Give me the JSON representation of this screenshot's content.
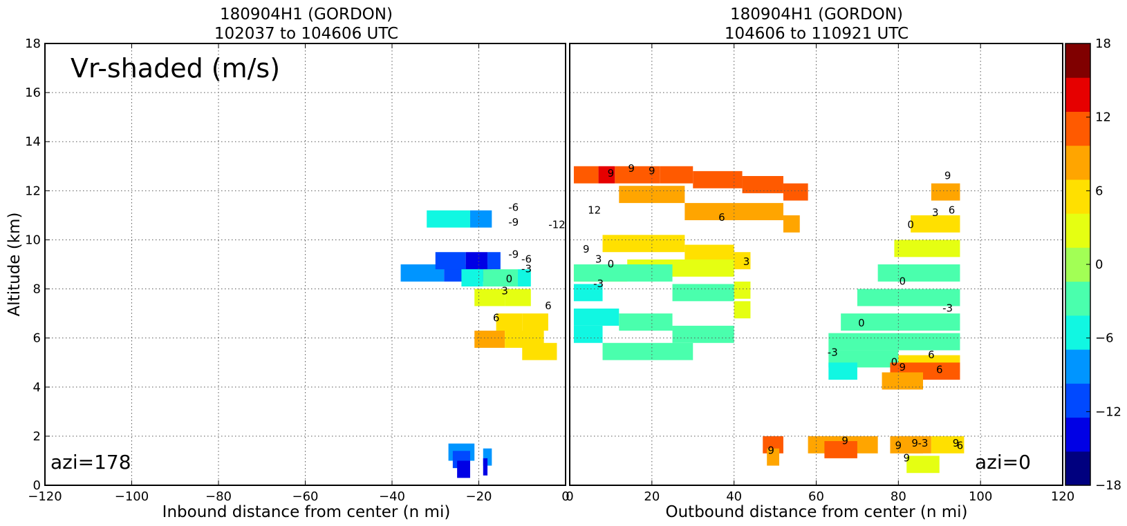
{
  "figure": {
    "shading_label": "Vr-shaded (m/s)"
  },
  "chart_data": [
    {
      "type": "heatmap",
      "title": "180904H1 (GORDON)",
      "subtitle": "102037 to 104606 UTC",
      "xlabel": "Inbound distance from center (n mi)",
      "ylabel": "Altitude (km)",
      "xlim": [
        -120,
        0
      ],
      "ylim": [
        0,
        18
      ],
      "xticks": [
        -120,
        -100,
        -80,
        -60,
        -40,
        -20,
        0
      ],
      "yticks": [
        0,
        2,
        4,
        6,
        8,
        10,
        12,
        14,
        16,
        18
      ],
      "grid": true,
      "annotation": "azi=178",
      "cells": [
        [
          -24,
          9,
          -14,
          -4,
          -7.5
        ],
        [
          -24,
          9,
          -4,
          1,
          -10.5
        ],
        [
          -24,
          9,
          1,
          4,
          -4.5
        ],
        [
          -24,
          9,
          4,
          7,
          -7.5
        ],
        [
          -20,
          11.2,
          -12,
          -2,
          -4.5
        ],
        [
          -20,
          11.2,
          -2,
          3,
          -7.5
        ],
        [
          -20,
          9.5,
          -10,
          -3,
          -10.5
        ],
        [
          -20,
          9.5,
          -3,
          2,
          -13.5
        ],
        [
          -20,
          9.5,
          2,
          5,
          -10.5
        ],
        [
          -15,
          8.8,
          -9,
          -4,
          -4.5
        ],
        [
          -15,
          8.8,
          -4,
          4,
          -1.5
        ],
        [
          -15,
          8.8,
          4,
          7,
          -4.5
        ],
        [
          -12,
          8.0,
          -9,
          -2,
          1.5
        ],
        [
          -12,
          8.0,
          -2,
          4,
          1.5
        ],
        [
          -9,
          7.0,
          -7,
          -1,
          4.5
        ],
        [
          -9,
          7.0,
          -1,
          5,
          4.5
        ],
        [
          -10,
          6.3,
          -11,
          -4,
          7.5
        ],
        [
          -10,
          6.3,
          -4,
          5,
          4.5
        ],
        [
          -6,
          5.8,
          -4,
          4,
          4.5
        ],
        [
          -25,
          1.7,
          -2,
          4,
          -7.5
        ],
        [
          -25,
          1.4,
          -1,
          3,
          -10.5
        ],
        [
          -24,
          1.0,
          -1,
          2,
          -13.5
        ],
        [
          -19,
          1.5,
          0,
          2,
          -7.5
        ],
        [
          -19,
          1.1,
          0,
          1,
          -13.5
        ]
      ],
      "contours": [
        {
          "label": "-6",
          "x": -12,
          "y": 11.3
        },
        {
          "label": "-9",
          "x": -12,
          "y": 10.7
        },
        {
          "label": "-12",
          "x": -2,
          "y": 10.6
        },
        {
          "label": "-9",
          "x": -12,
          "y": 9.4
        },
        {
          "label": "-6",
          "x": -9,
          "y": 9.2
        },
        {
          "label": "-3",
          "x": -9,
          "y": 8.8
        },
        {
          "label": "0",
          "x": -13,
          "y": 8.4
        },
        {
          "label": "3",
          "x": -14,
          "y": 7.9
        },
        {
          "label": "6",
          "x": -16,
          "y": 6.8
        },
        {
          "label": "6",
          "x": -4,
          "y": 7.3
        }
      ]
    },
    {
      "type": "heatmap",
      "title": "180904H1 (GORDON)",
      "subtitle": "104606 to 110921 UTC",
      "xlabel": "Outbound distance from center (n mi)",
      "ylabel": "",
      "xlim": [
        0,
        120
      ],
      "ylim": [
        0,
        18
      ],
      "xticks": [
        0,
        20,
        40,
        60,
        80,
        100,
        120
      ],
      "yticks": [
        0,
        2,
        4,
        6,
        8,
        10,
        12,
        14,
        16,
        18
      ],
      "grid": true,
      "annotation": "azi=0",
      "cells": [
        [
          0,
          13.0,
          1,
          7,
          10.5
        ],
        [
          0,
          13.0,
          7,
          11,
          13.5
        ],
        [
          0,
          13.0,
          11,
          22,
          10.5
        ],
        [
          0,
          13.0,
          22,
          30,
          10.5
        ],
        [
          0,
          12.8,
          30,
          42,
          10.5
        ],
        [
          0,
          12.6,
          42,
          52,
          10.5
        ],
        [
          0,
          12.3,
          52,
          58,
          10.5
        ],
        [
          0,
          12.2,
          12,
          28,
          7.5
        ],
        [
          0,
          11.5,
          28,
          52,
          7.5
        ],
        [
          0,
          11.0,
          52,
          56,
          7.5
        ],
        [
          0,
          10.2,
          8,
          28,
          4.5
        ],
        [
          0,
          9.8,
          28,
          40,
          4.5
        ],
        [
          0,
          9.5,
          40,
          44,
          4.5
        ],
        [
          0,
          9.0,
          1,
          14,
          4.5
        ],
        [
          0,
          9.2,
          14,
          40,
          1.5
        ],
        [
          0,
          8.3,
          40,
          44,
          1.5
        ],
        [
          0,
          9.0,
          1,
          25,
          -1.5
        ],
        [
          0,
          8.2,
          25,
          40,
          -1.5
        ],
        [
          0,
          7.5,
          40,
          44,
          1.5
        ],
        [
          0,
          8.2,
          1,
          8,
          -4.5
        ],
        [
          0,
          7.2,
          1,
          12,
          -4.5
        ],
        [
          0,
          6.5,
          1,
          8,
          -4.5
        ],
        [
          0,
          7.0,
          12,
          25,
          -1.5
        ],
        [
          0,
          6.5,
          25,
          40,
          -1.5
        ],
        [
          0,
          5.8,
          8,
          30,
          -1.5
        ],
        [
          0,
          12.3,
          88,
          95,
          7.5
        ],
        [
          0,
          11.0,
          83,
          95,
          4.5
        ],
        [
          0,
          10.0,
          79,
          95,
          1.5
        ],
        [
          0,
          9.0,
          75,
          95,
          -1.5
        ],
        [
          0,
          8.0,
          70,
          95,
          -1.5
        ],
        [
          0,
          7.0,
          66,
          95,
          -1.5
        ],
        [
          0,
          6.2,
          63,
          95,
          -1.5
        ],
        [
          0,
          5.5,
          63,
          80,
          -1.5
        ],
        [
          0,
          5.0,
          63,
          70,
          -4.5
        ],
        [
          0,
          5.3,
          80,
          95,
          4.5
        ],
        [
          0,
          5.0,
          78,
          95,
          10.5
        ],
        [
          0,
          4.6,
          76,
          86,
          7.5
        ],
        [
          0,
          2.0,
          47,
          52,
          10.5
        ],
        [
          0,
          1.5,
          48,
          51,
          7.5
        ],
        [
          0,
          2.0,
          58,
          75,
          7.5
        ],
        [
          0,
          1.8,
          62,
          70,
          10.5
        ],
        [
          0,
          2.0,
          78,
          88,
          7.5
        ],
        [
          0,
          2.0,
          88,
          96,
          4.5
        ],
        [
          0,
          1.2,
          82,
          90,
          1.5
        ],
        [
          0,
          2.0,
          80,
          86,
          7.5
        ]
      ],
      "contours": [
        {
          "label": "9",
          "x": 10,
          "y": 12.7
        },
        {
          "label": "9",
          "x": 15,
          "y": 12.9
        },
        {
          "label": "9",
          "x": 20,
          "y": 12.8
        },
        {
          "label": "12",
          "x": 6,
          "y": 11.2
        },
        {
          "label": "9",
          "x": 4,
          "y": 9.6
        },
        {
          "label": "6",
          "x": 37,
          "y": 10.9
        },
        {
          "label": "3",
          "x": 7,
          "y": 9.2
        },
        {
          "label": "0",
          "x": 10,
          "y": 9.0
        },
        {
          "label": "-3",
          "x": 7,
          "y": 8.2
        },
        {
          "label": "3",
          "x": 43,
          "y": 9.1
        },
        {
          "label": "9",
          "x": 92,
          "y": 12.6
        },
        {
          "label": "6",
          "x": 93,
          "y": 11.2
        },
        {
          "label": "3",
          "x": 89,
          "y": 11.1
        },
        {
          "label": "0",
          "x": 83,
          "y": 10.6
        },
        {
          "label": "0",
          "x": 81,
          "y": 8.3
        },
        {
          "label": "-3",
          "x": 92,
          "y": 7.2
        },
        {
          "label": "0",
          "x": 71,
          "y": 6.6
        },
        {
          "label": "-3",
          "x": 64,
          "y": 5.4
        },
        {
          "label": "0",
          "x": 79,
          "y": 5.0
        },
        {
          "label": "6",
          "x": 88,
          "y": 5.3
        },
        {
          "label": "6",
          "x": 90,
          "y": 4.7
        },
        {
          "label": "9",
          "x": 81,
          "y": 4.8
        },
        {
          "label": "9",
          "x": 49,
          "y": 1.4
        },
        {
          "label": "9",
          "x": 67,
          "y": 1.8
        },
        {
          "label": "9",
          "x": 80,
          "y": 1.6
        },
        {
          "label": "9",
          "x": 84,
          "y": 1.7
        },
        {
          "label": "-3",
          "x": 86,
          "y": 1.7
        },
        {
          "label": "9",
          "x": 82,
          "y": 1.1
        },
        {
          "label": "9",
          "x": 94,
          "y": 1.7
        },
        {
          "label": "6",
          "x": 95,
          "y": 1.6
        }
      ]
    }
  ],
  "colorbar": {
    "min": -18,
    "max": 18,
    "step": 3,
    "tick_labels": [
      "18",
      "12",
      "6",
      "0",
      "−6",
      "−12",
      "−18"
    ],
    "colors": [
      "#00007f",
      "#0000e5",
      "#0049ff",
      "#0095ff",
      "#11f7e2",
      "#4affad",
      "#a2ff55",
      "#e5ff12",
      "#ffe000",
      "#ffa500",
      "#ff5a00",
      "#e60000",
      "#800000"
    ]
  }
}
